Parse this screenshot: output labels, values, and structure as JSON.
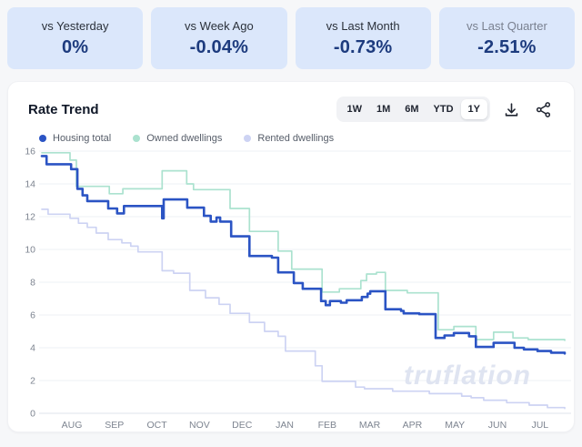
{
  "stats": {
    "cards": [
      {
        "label": "vs Yesterday",
        "value": "0%"
      },
      {
        "label": "vs Week Ago",
        "value": "-0.04%"
      },
      {
        "label": "vs Last Month",
        "value": "-0.73%"
      },
      {
        "label": "vs Last Quarter",
        "value": "-2.51%",
        "muted": true
      }
    ],
    "card_bg_color": "#dbe7fb",
    "value_color": "#1d3b7e"
  },
  "chart": {
    "title": "Rate Trend",
    "ranges": [
      "1W",
      "1M",
      "6M",
      "YTD",
      "1Y"
    ],
    "active_range": "1Y",
    "toolbar": {
      "download_icon": "download-icon",
      "share_icon": "share-icon"
    }
  },
  "chart_data": {
    "type": "line",
    "title": "Rate Trend",
    "x_labels": [
      "AUG",
      "SEP",
      "OCT",
      "NOV",
      "DEC",
      "JAN",
      "FEB",
      "MAR",
      "APR",
      "MAY",
      "JUN",
      "JUL"
    ],
    "ylim": [
      0,
      16
    ],
    "ytick_step": 2,
    "grid": "horizontal",
    "legend_position": "top-left",
    "watermark": "truflation",
    "step_rendering": true,
    "x_unit": "fraction of Aug–Jul range",
    "series": [
      {
        "name": "Housing total",
        "color": "#2b54c4",
        "width": 2.6,
        "points": [
          [
            0.0,
            15.7
          ],
          [
            0.009,
            15.2
          ],
          [
            0.056,
            14.9
          ],
          [
            0.068,
            13.7
          ],
          [
            0.078,
            13.3
          ],
          [
            0.087,
            12.95
          ],
          [
            0.127,
            12.5
          ],
          [
            0.144,
            12.2
          ],
          [
            0.157,
            12.65
          ],
          [
            0.23,
            11.9
          ],
          [
            0.233,
            13.05
          ],
          [
            0.278,
            12.55
          ],
          [
            0.31,
            12.05
          ],
          [
            0.323,
            11.7
          ],
          [
            0.334,
            11.95
          ],
          [
            0.341,
            11.7
          ],
          [
            0.362,
            10.8
          ],
          [
            0.397,
            9.6
          ],
          [
            0.44,
            9.5
          ],
          [
            0.452,
            8.6
          ],
          [
            0.482,
            7.95
          ],
          [
            0.499,
            7.6
          ],
          [
            0.534,
            6.85
          ],
          [
            0.543,
            6.6
          ],
          [
            0.551,
            6.85
          ],
          [
            0.572,
            6.75
          ],
          [
            0.583,
            6.9
          ],
          [
            0.612,
            7.1
          ],
          [
            0.623,
            7.3
          ],
          [
            0.628,
            7.45
          ],
          [
            0.657,
            6.35
          ],
          [
            0.687,
            6.25
          ],
          [
            0.692,
            6.1
          ],
          [
            0.722,
            6.05
          ],
          [
            0.753,
            4.6
          ],
          [
            0.77,
            4.75
          ],
          [
            0.788,
            4.9
          ],
          [
            0.817,
            4.7
          ],
          [
            0.83,
            4.05
          ],
          [
            0.864,
            4.3
          ],
          [
            0.904,
            4.0
          ],
          [
            0.922,
            3.9
          ],
          [
            0.948,
            3.8
          ],
          [
            0.974,
            3.7
          ],
          [
            1.0,
            3.65
          ]
        ]
      },
      {
        "name": "Owned dwellings",
        "color": "#abe2cf",
        "width": 1.7,
        "points": [
          [
            0.0,
            15.9
          ],
          [
            0.054,
            15.45
          ],
          [
            0.066,
            13.85
          ],
          [
            0.129,
            13.4
          ],
          [
            0.155,
            13.7
          ],
          [
            0.23,
            14.8
          ],
          [
            0.277,
            14.0
          ],
          [
            0.29,
            13.65
          ],
          [
            0.36,
            12.5
          ],
          [
            0.397,
            11.1
          ],
          [
            0.452,
            9.9
          ],
          [
            0.478,
            8.8
          ],
          [
            0.536,
            7.4
          ],
          [
            0.569,
            7.6
          ],
          [
            0.61,
            8.1
          ],
          [
            0.621,
            8.5
          ],
          [
            0.64,
            8.6
          ],
          [
            0.657,
            7.5
          ],
          [
            0.699,
            7.35
          ],
          [
            0.758,
            5.1
          ],
          [
            0.788,
            5.3
          ],
          [
            0.83,
            4.5
          ],
          [
            0.864,
            4.95
          ],
          [
            0.901,
            4.6
          ],
          [
            0.93,
            4.5
          ],
          [
            1.0,
            4.45
          ]
        ]
      },
      {
        "name": "Rented dwellings",
        "color": "#cdd3f3",
        "width": 1.7,
        "points": [
          [
            0.0,
            12.45
          ],
          [
            0.012,
            12.15
          ],
          [
            0.054,
            11.9
          ],
          [
            0.07,
            11.6
          ],
          [
            0.087,
            11.35
          ],
          [
            0.104,
            11.0
          ],
          [
            0.127,
            10.6
          ],
          [
            0.153,
            10.4
          ],
          [
            0.17,
            10.2
          ],
          [
            0.184,
            9.85
          ],
          [
            0.23,
            8.7
          ],
          [
            0.252,
            8.55
          ],
          [
            0.283,
            7.5
          ],
          [
            0.313,
            7.05
          ],
          [
            0.339,
            6.65
          ],
          [
            0.36,
            6.1
          ],
          [
            0.397,
            5.55
          ],
          [
            0.426,
            5.0
          ],
          [
            0.452,
            4.7
          ],
          [
            0.466,
            3.8
          ],
          [
            0.523,
            2.9
          ],
          [
            0.536,
            1.95
          ],
          [
            0.6,
            1.6
          ],
          [
            0.617,
            1.5
          ],
          [
            0.671,
            1.35
          ],
          [
            0.741,
            1.2
          ],
          [
            0.803,
            1.05
          ],
          [
            0.821,
            0.95
          ],
          [
            0.845,
            0.8
          ],
          [
            0.889,
            0.65
          ],
          [
            0.932,
            0.5
          ],
          [
            0.967,
            0.35
          ],
          [
            1.0,
            0.3
          ]
        ]
      }
    ]
  }
}
